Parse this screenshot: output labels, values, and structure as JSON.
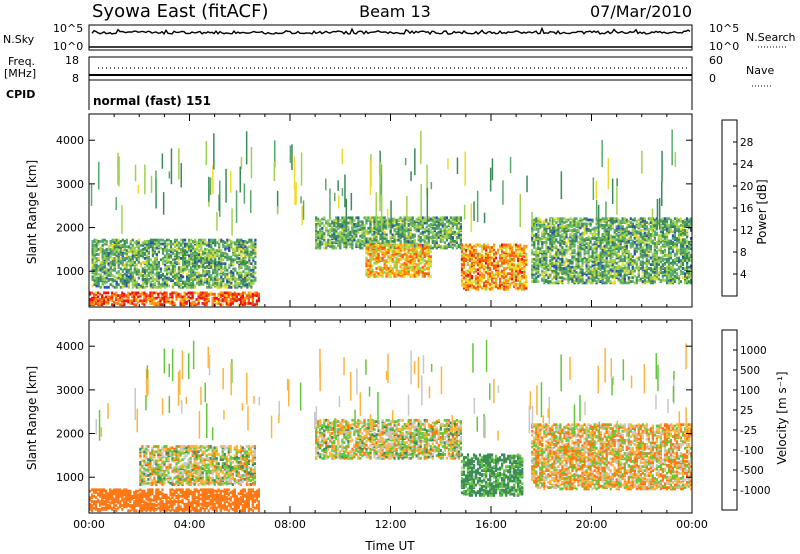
{
  "header": {
    "station": "Syowa East (fitACF)",
    "beam": "Beam 13",
    "date": "07/Mar/2010"
  },
  "strip_panels": {
    "nsky": {
      "label": "N.Sky",
      "ticks": [
        "10^5",
        "10^0"
      ]
    },
    "nsearch": {
      "label": "N.Search",
      "ticks": [
        "10^5",
        "10^0"
      ]
    },
    "freq": {
      "label_line1": "Freq.",
      "label_line2": "[MHz]",
      "ticks": [
        "18",
        "8"
      ]
    },
    "nave": {
      "label": "Nave",
      "ticks": [
        "60",
        "0"
      ]
    },
    "cpid": {
      "label": "CPID",
      "value": "normal (fast) 151"
    }
  },
  "colors": {
    "power_scale": [
      "#1a1aff",
      "#2d50b0",
      "#3c8c5a",
      "#5aaa6e",
      "#a0d250",
      "#f0dc28",
      "#ff9614",
      "#ff5a0a",
      "#e61414"
    ],
    "velocity_scale": [
      "#1e3cb4",
      "#2d64c8",
      "#3c8c5a",
      "#64c83c",
      "#c8c8c8",
      "#c8c8c8",
      "#ffb43c",
      "#ff7814",
      "#ff3c0a",
      "#e61414"
    ]
  },
  "chart_data": [
    {
      "type": "heatmap",
      "name": "power",
      "xlabel": "",
      "ylabel": "Slant Range [km]",
      "x_range_hours": [
        0,
        24
      ],
      "y_range_km": [
        180,
        4600
      ],
      "y_ticks": [
        "4000",
        "3000",
        "2000",
        "1000"
      ],
      "colorbar": {
        "label": "Power [dB]",
        "ticks": [
          "28",
          "24",
          "20",
          "16",
          "12",
          "8",
          "4"
        ]
      },
      "echo_regions": [
        {
          "t0": 0.0,
          "t1": 6.8,
          "r0": 200,
          "r1": 500,
          "level": 28
        },
        {
          "t0": 0.1,
          "t1": 6.6,
          "r0": 600,
          "r1": 1700,
          "level": 12
        },
        {
          "t0": 9.0,
          "t1": 14.8,
          "r0": 1500,
          "r1": 2200,
          "level": 12
        },
        {
          "t0": 11.0,
          "t1": 13.6,
          "r0": 850,
          "r1": 1600,
          "level": 22
        },
        {
          "t0": 14.8,
          "t1": 17.4,
          "r0": 550,
          "r1": 1600,
          "level": 24
        },
        {
          "t0": 17.6,
          "t1": 24.0,
          "r0": 700,
          "r1": 2200,
          "level": 12
        }
      ]
    },
    {
      "type": "heatmap",
      "name": "velocity",
      "xlabel": "Time UT",
      "ylabel": "Slant Range [km]",
      "x_range_hours": [
        0,
        24
      ],
      "y_range_km": [
        180,
        4600
      ],
      "x_ticks": [
        "00:00",
        "04:00",
        "08:00",
        "12:00",
        "16:00",
        "20:00",
        "00:00"
      ],
      "y_ticks": [
        "4000",
        "3000",
        "2000",
        "1000"
      ],
      "colorbar": {
        "label": "Velocity [m s⁻¹]",
        "ticks": [
          "1000",
          "500",
          "100",
          "25",
          "-25",
          "-100",
          "-500",
          "-1000"
        ]
      },
      "echo_regions": [
        {
          "t0": 0.0,
          "t1": 6.8,
          "r0": 200,
          "r1": 700,
          "velocity": -300
        },
        {
          "t0": 2.0,
          "t1": 6.6,
          "r0": 800,
          "r1": 1700,
          "velocity": 0
        },
        {
          "t0": 9.0,
          "t1": 14.8,
          "r0": 1400,
          "r1": 2300,
          "velocity": 0
        },
        {
          "t0": 14.8,
          "t1": 17.2,
          "r0": 550,
          "r1": 1500,
          "velocity": 150
        },
        {
          "t0": 17.6,
          "t1": 24.0,
          "r0": 700,
          "r1": 2200,
          "velocity": -50
        }
      ]
    }
  ]
}
